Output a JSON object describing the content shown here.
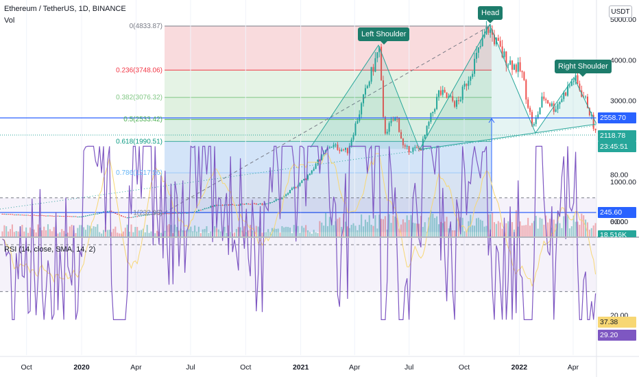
{
  "header": {
    "title": "Ethereum / TetherUS, 1D, BINANCE",
    "vol_label": "Vol",
    "rsi_label": "RSI (14, close, SMA, 14, 2)",
    "currency_button": "USDT"
  },
  "colors": {
    "up": "#26a69a",
    "down": "#ef5350",
    "rsi": "#7e57c2",
    "rsi_ma": "#f7d774",
    "blue_line": "#2962ff",
    "pattern": "#26a69a"
  },
  "annotations": {
    "left_shoulder": "Left Shoulder",
    "head": "Head",
    "right_shoulder": "Right Shoulder"
  },
  "badges": {
    "resistance": "2558.70",
    "price": "2118.78",
    "countdown": "23:45:51",
    "support": "245.60",
    "volume": "18.516K",
    "rsi_ma": "37.38",
    "rsi": "29.20"
  },
  "chart_data": [
    {
      "type": "candlestick",
      "title": "Ethereum / TetherUS, 1D, BINANCE",
      "y_ticks": [
        "5000.00",
        "4000.00",
        "3000.00",
        "1000.00",
        "0.00"
      ],
      "x_ticks": [
        "Oct",
        "2020",
        "Apr",
        "Jul",
        "Oct",
        "2021",
        "Apr",
        "Jul",
        "Oct",
        "2022",
        "Apr"
      ],
      "fib_levels": [
        {
          "label": "0(4833.87)",
          "value": 4833.87,
          "color": "#787b86"
        },
        {
          "label": "0.236(3748.06)",
          "value": 3748.06,
          "color": "#f23645"
        },
        {
          "label": "0.382(3076.32)",
          "value": 3076.32,
          "color": "#81c784"
        },
        {
          "label": "0.5(2533.42)",
          "value": 2533.42,
          "color": "#4caf50"
        },
        {
          "label": "0.618(1990.51)",
          "value": 1990.51,
          "color": "#089981"
        },
        {
          "label": "0.786(1217.56)",
          "value": 1217.56,
          "color": "#64b5f6"
        },
        {
          "label": "1(232.96)",
          "value": 232.96,
          "color": "#787b86"
        }
      ],
      "price_path": [
        [
          "2019-08",
          220
        ],
        [
          "2019-10",
          180
        ],
        [
          "2020-01",
          140
        ],
        [
          "2020-02-15",
          280
        ],
        [
          "2020-03-15",
          110
        ],
        [
          "2020-05",
          210
        ],
        [
          "2020-07",
          240
        ],
        [
          "2020-08-15",
          430
        ],
        [
          "2020-11",
          450
        ],
        [
          "2020-12-01",
          600
        ],
        [
          "2021-01-10",
          1100
        ],
        [
          "2021-02-20",
          1900
        ],
        [
          "2021-03-20",
          1750
        ],
        [
          "2021-05-12",
          4300
        ],
        [
          "2021-05-20",
          2200
        ],
        [
          "2021-06-10",
          2600
        ],
        [
          "2021-06-22",
          1800
        ],
        [
          "2021-07-20",
          1800
        ],
        [
          "2021-08-20",
          3200
        ],
        [
          "2021-09-20",
          2900
        ],
        [
          "2021-11-10",
          4800
        ],
        [
          "2021-12-05",
          4100
        ],
        [
          "2022-01-05",
          3700
        ],
        [
          "2022-01-24",
          2300
        ],
        [
          "2022-02-10",
          3100
        ],
        [
          "2022-03-01",
          2800
        ],
        [
          "2022-04-03",
          3550
        ],
        [
          "2022-04-25",
          2900
        ],
        [
          "2022-05-10",
          2118.78
        ]
      ]
    },
    {
      "type": "line",
      "title": "RSI (14, close, SMA, 14, 2)",
      "y_ticks": [
        "80.00",
        "60.00",
        "20.00"
      ],
      "bands": [
        70,
        50,
        30
      ],
      "last_rsi": 29.2,
      "last_rsi_ma": 37.38
    }
  ]
}
